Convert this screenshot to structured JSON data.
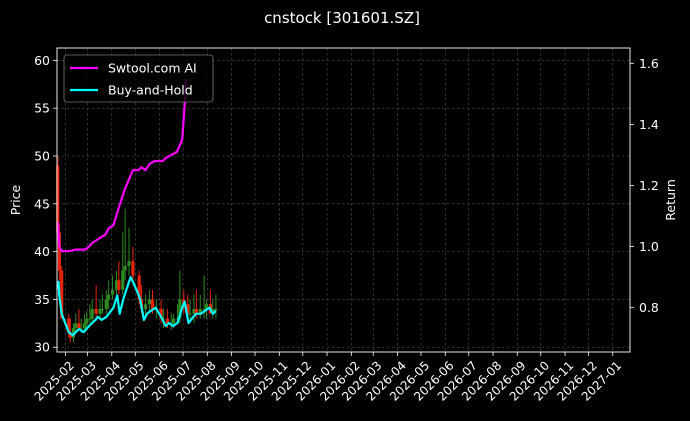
{
  "chart_data": {
    "type": "line",
    "title": "cnstock [301601.SZ]",
    "xlabel": "",
    "ylabel": "Price",
    "y2label": "Return",
    "grid": true,
    "legend": {
      "placement": "top-left"
    },
    "colors": {
      "background": "#000000",
      "text": "#ffffff",
      "grid": "#555555",
      "up_candle": "#2e8b22",
      "down_candle": "#e8240a"
    },
    "x_ticks": [
      "2025-02",
      "2025-03",
      "2025-04",
      "2025-05",
      "2025-06",
      "2025-07",
      "2025-08",
      "2025-09",
      "2025-10",
      "2025-11",
      "2025-12",
      "2026-01",
      "2026-02",
      "2026-03",
      "2026-04",
      "2026-05",
      "2026-06",
      "2026-07",
      "2026-08",
      "2026-09",
      "2026-10",
      "2026-11",
      "2026-12",
      "2027-01"
    ],
    "x_range": [
      "2025-01-21",
      "2027-01-23"
    ],
    "y_ticks": [
      30,
      35,
      40,
      45,
      50,
      55,
      60
    ],
    "ylim": [
      29.5,
      61.3
    ],
    "y2_ticks": [
      "0.8",
      "1.0",
      "1.2",
      "1.4",
      "1.6"
    ],
    "y2lim": [
      0.655,
      1.65
    ],
    "series": [
      {
        "name": "Swtool.com AI",
        "axis": "right",
        "color": "#ff00ff",
        "x": [
          "2025-01-22",
          "2025-01-24",
          "2025-01-27",
          "2025-02-05",
          "2025-02-14",
          "2025-02-21",
          "2025-02-26",
          "2025-03-03",
          "2025-03-06",
          "2025-03-12",
          "2025-03-18",
          "2025-03-24",
          "2025-03-28",
          "2025-04-03",
          "2025-04-09",
          "2025-04-14",
          "2025-04-18",
          "2025-04-23",
          "2025-04-28",
          "2025-05-05",
          "2025-05-09",
          "2025-05-14",
          "2025-05-19",
          "2025-05-26",
          "2025-06-05",
          "2025-06-09",
          "2025-06-16",
          "2025-06-23",
          "2025-06-30",
          "2025-07-03",
          "2025-07-05"
        ],
        "y": [
          1.08,
          1.0,
          0.985,
          0.985,
          0.99,
          0.99,
          0.99,
          1.0,
          1.01,
          1.02,
          1.03,
          1.04,
          1.06,
          1.07,
          1.12,
          1.16,
          1.19,
          1.22,
          1.25,
          1.25,
          1.26,
          1.25,
          1.27,
          1.28,
          1.28,
          1.29,
          1.3,
          1.31,
          1.35,
          1.46,
          1.55
        ]
      },
      {
        "name": "Buy-and-Hold",
        "axis": "right",
        "color": "#00ffff",
        "x": [
          "2025-01-22",
          "2025-01-23",
          "2025-01-24",
          "2025-01-27",
          "2025-02-05",
          "2025-02-10",
          "2025-02-14",
          "2025-02-18",
          "2025-02-24",
          "2025-03-03",
          "2025-03-07",
          "2025-03-11",
          "2025-03-14",
          "2025-03-19",
          "2025-03-25",
          "2025-03-31",
          "2025-04-03",
          "2025-04-08",
          "2025-04-11",
          "2025-04-16",
          "2025-04-21",
          "2025-04-25",
          "2025-04-29",
          "2025-05-07",
          "2025-05-12",
          "2025-05-16",
          "2025-05-21",
          "2025-05-27",
          "2025-06-03",
          "2025-06-09",
          "2025-06-13",
          "2025-06-18",
          "2025-06-24",
          "2025-06-30",
          "2025-07-03",
          "2025-07-08",
          "2025-07-14",
          "2025-07-18",
          "2025-07-24",
          "2025-07-29",
          "2025-08-04",
          "2025-08-08",
          "2025-08-12"
        ],
        "y": [
          0.86,
          0.885,
          0.84,
          0.78,
          0.72,
          0.71,
          0.72,
          0.73,
          0.72,
          0.74,
          0.75,
          0.76,
          0.77,
          0.76,
          0.77,
          0.79,
          0.8,
          0.84,
          0.78,
          0.83,
          0.87,
          0.9,
          0.88,
          0.83,
          0.76,
          0.78,
          0.79,
          0.8,
          0.77,
          0.74,
          0.75,
          0.74,
          0.75,
          0.8,
          0.82,
          0.75,
          0.77,
          0.78,
          0.78,
          0.79,
          0.8,
          0.78,
          0.79
        ]
      }
    ],
    "candles": {
      "axis": "left",
      "x": [
        "2025-01-22",
        "2025-01-24",
        "2025-01-27",
        "2025-02-05",
        "2025-02-07",
        "2025-02-11",
        "2025-02-14",
        "2025-02-18",
        "2025-02-21",
        "2025-02-25",
        "2025-02-28",
        "2025-03-04",
        "2025-03-07",
        "2025-03-12",
        "2025-03-17",
        "2025-03-20",
        "2025-03-25",
        "2025-03-28",
        "2025-04-02",
        "2025-04-07",
        "2025-04-10",
        "2025-04-15",
        "2025-04-18",
        "2025-04-23",
        "2025-04-28",
        "2025-05-06",
        "2025-05-09",
        "2025-05-14",
        "2025-05-19",
        "2025-05-23",
        "2025-05-28",
        "2025-06-03",
        "2025-06-06",
        "2025-06-11",
        "2025-06-16",
        "2025-06-19",
        "2025-06-24",
        "2025-06-27",
        "2025-07-02",
        "2025-07-07",
        "2025-07-10",
        "2025-07-15",
        "2025-07-18",
        "2025-07-23",
        "2025-07-28",
        "2025-07-31",
        "2025-08-05",
        "2025-08-08",
        "2025-08-12"
      ],
      "open": [
        49.0,
        42.0,
        38.0,
        33.0,
        31.5,
        31.0,
        32.0,
        32.5,
        32.0,
        32.0,
        32.5,
        33.0,
        33.0,
        34.0,
        33.5,
        34.0,
        34.0,
        35.0,
        35.5,
        36.0,
        37.0,
        36.0,
        38.0,
        38.5,
        39.0,
        37.5,
        35.0,
        34.0,
        34.5,
        35.0,
        34.0,
        34.0,
        33.0,
        33.0,
        32.5,
        32.5,
        33.0,
        33.0,
        35.0,
        34.5,
        33.5,
        33.5,
        34.0,
        33.5,
        34.0,
        34.0,
        34.5,
        33.5,
        34.0
      ],
      "high": [
        50.0,
        43.0,
        38.5,
        33.5,
        33.0,
        32.5,
        33.5,
        34.0,
        33.0,
        33.5,
        33.8,
        34.5,
        35.0,
        36.5,
        35.0,
        35.5,
        36.0,
        37.0,
        37.5,
        38.0,
        39.0,
        42.0,
        44.5,
        42.5,
        40.5,
        38.0,
        36.5,
        35.5,
        36.0,
        36.0,
        35.0,
        35.0,
        34.0,
        34.0,
        33.5,
        33.5,
        34.5,
        38.0,
        36.0,
        35.5,
        35.0,
        35.5,
        36.0,
        35.5,
        37.5,
        35.0,
        36.0,
        35.0,
        35.5
      ],
      "low": [
        41.0,
        37.0,
        33.0,
        31.0,
        30.5,
        30.5,
        31.5,
        31.8,
        31.5,
        31.5,
        32.0,
        32.5,
        32.5,
        33.0,
        33.0,
        33.5,
        33.5,
        34.0,
        35.0,
        35.5,
        35.5,
        35.5,
        37.0,
        37.5,
        36.5,
        34.5,
        33.5,
        33.0,
        33.5,
        33.5,
        33.0,
        32.5,
        32.0,
        32.0,
        31.8,
        32.0,
        32.5,
        32.5,
        33.5,
        33.0,
        32.5,
        32.5,
        33.0,
        33.0,
        33.0,
        33.0,
        33.5,
        33.0,
        33.0
      ],
      "close": [
        42.0,
        38.0,
        33.0,
        31.5,
        31.0,
        32.0,
        32.5,
        32.0,
        32.0,
        32.5,
        33.0,
        33.0,
        34.0,
        33.5,
        34.0,
        34.0,
        35.0,
        35.5,
        36.0,
        37.0,
        36.0,
        38.0,
        38.5,
        39.0,
        37.5,
        35.0,
        34.0,
        34.5,
        35.0,
        34.0,
        34.0,
        33.0,
        33.0,
        32.5,
        32.5,
        33.0,
        33.0,
        35.0,
        34.5,
        33.5,
        33.5,
        34.0,
        33.5,
        34.0,
        34.0,
        34.5,
        33.5,
        34.0,
        34.0
      ]
    }
  }
}
